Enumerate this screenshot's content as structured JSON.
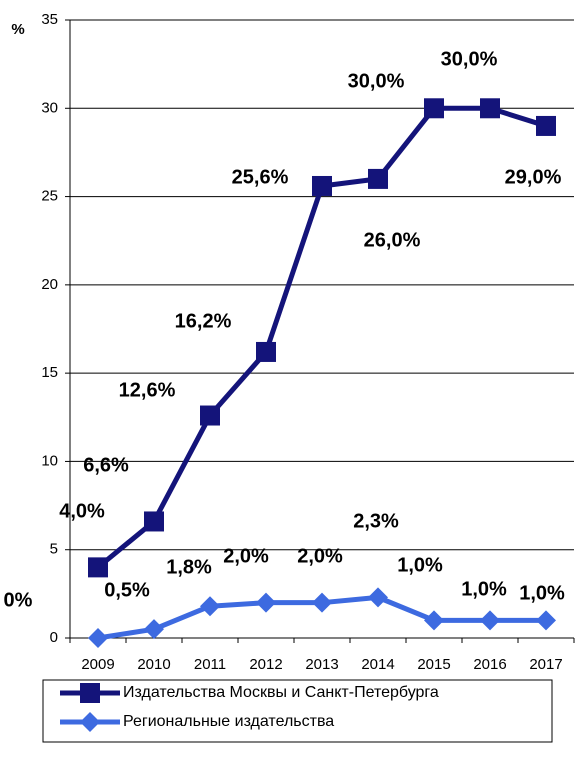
{
  "chart_data": {
    "type": "line",
    "y_label": "%",
    "categories": [
      "2009",
      "2010",
      "2011",
      "2012",
      "2013",
      "2014",
      "2015",
      "2016",
      "2017"
    ],
    "series": [
      {
        "name": "Издательства Москвы и Санкт-Петербурга",
        "color": "#14147a",
        "marker": "square",
        "values": [
          4.0,
          6.6,
          12.6,
          16.2,
          25.6,
          26.0,
          30.0,
          30.0,
          29.0
        ],
        "value_labels": [
          "4,0%",
          "6,6%",
          "12,6%",
          "16,2%",
          "25,6%",
          "26,0%",
          "30,0%",
          "30,0%",
          "29,0%"
        ]
      },
      {
        "name": "Региональные издательства",
        "color": "#3d6ae0",
        "marker": "diamond",
        "values": [
          0,
          0.5,
          1.8,
          2.0,
          2.0,
          2.3,
          1.0,
          1.0,
          1.0
        ],
        "value_labels": [
          "0%",
          "0,5%",
          "1,8%",
          "2,0%",
          "2,0%",
          "2,3%",
          "1,0%",
          "1,0%",
          "1,0%"
        ]
      }
    ],
    "ylim": [
      0,
      35
    ],
    "yticks": [
      0,
      5,
      10,
      15,
      20,
      25,
      30,
      35
    ],
    "grid": true,
    "legend": "bottom"
  }
}
